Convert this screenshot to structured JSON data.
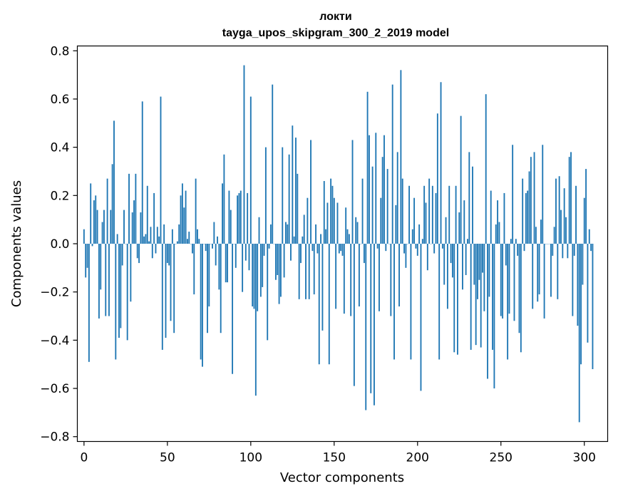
{
  "chart_data": {
    "type": "bar",
    "title": "локти",
    "subtitle": "tayga_upos_skipgram_300_2_2019 model",
    "xlabel": "Vector components",
    "ylabel": "Components values",
    "xlim": [
      -4,
      314
    ],
    "ylim": [
      -0.82,
      0.82
    ],
    "x_ticks": [
      0,
      50,
      100,
      150,
      200,
      250,
      300
    ],
    "y_ticks": [
      -0.8,
      -0.6,
      -0.4,
      -0.2,
      0.0,
      0.2,
      0.4,
      0.6,
      0.8
    ],
    "y_tick_labels": [
      "−0.8",
      "−0.6",
      "−0.4",
      "−0.2",
      "0.0",
      "0.2",
      "0.4",
      "0.6",
      "0.8"
    ],
    "x_tick_labels": [
      "0",
      "50",
      "100",
      "150",
      "200",
      "250",
      "300"
    ],
    "bar_color": "#1f77b4",
    "grid": false,
    "values": [
      0.06,
      -0.14,
      -0.1,
      -0.49,
      0.25,
      -0.01,
      0.18,
      0.2,
      0.14,
      -0.31,
      -0.19,
      0.09,
      0.14,
      -0.3,
      0.27,
      -0.3,
      0.14,
      0.33,
      0.51,
      -0.48,
      0.04,
      -0.39,
      -0.35,
      -0.09,
      0.14,
      0.0,
      -0.4,
      0.29,
      -0.24,
      0.13,
      0.18,
      0.29,
      -0.06,
      -0.08,
      0.13,
      0.59,
      0.03,
      0.04,
      0.24,
      0.01,
      0.07,
      -0.06,
      0.21,
      -0.04,
      0.07,
      0.03,
      0.61,
      -0.44,
      0.08,
      -0.39,
      -0.08,
      -0.09,
      -0.32,
      0.06,
      -0.37,
      0.0,
      0.01,
      0.08,
      0.2,
      0.25,
      0.15,
      0.22,
      0.02,
      0.05,
      0.0,
      -0.04,
      -0.21,
      0.27,
      0.06,
      0.02,
      -0.48,
      -0.51,
      0.0,
      -0.03,
      -0.37,
      -0.26,
      0.0,
      -0.02,
      0.09,
      -0.09,
      0.03,
      -0.19,
      -0.37,
      0.25,
      0.37,
      -0.16,
      -0.16,
      0.22,
      0.14,
      -0.54,
      0.0,
      -0.1,
      0.2,
      0.21,
      0.22,
      -0.2,
      0.74,
      -0.07,
      0.21,
      -0.11,
      0.61,
      -0.26,
      -0.27,
      -0.63,
      -0.28,
      0.11,
      -0.22,
      -0.18,
      -0.05,
      0.4,
      -0.4,
      -0.02,
      0.08,
      0.66,
      0.0,
      -0.15,
      -0.13,
      -0.25,
      -0.22,
      0.4,
      -0.14,
      0.09,
      0.08,
      0.37,
      -0.07,
      0.49,
      0.03,
      0.44,
      0.29,
      -0.23,
      -0.08,
      0.03,
      0.12,
      -0.23,
      0.19,
      -0.23,
      0.43,
      -0.03,
      -0.21,
      0.08,
      -0.04,
      -0.5,
      0.04,
      -0.36,
      0.26,
      0.06,
      0.17,
      -0.5,
      0.27,
      0.24,
      0.19,
      -0.27,
      0.17,
      -0.04,
      -0.03,
      -0.05,
      -0.29,
      0.15,
      0.06,
      0.04,
      -0.3,
      0.43,
      -0.59,
      0.11,
      0.09,
      -0.26,
      0.0,
      0.27,
      -0.08,
      -0.69,
      0.63,
      0.45,
      -0.62,
      0.32,
      -0.67,
      0.46,
      -0.02,
      -0.28,
      0.19,
      0.36,
      0.45,
      -0.03,
      0.31,
      0.0,
      -0.3,
      0.66,
      -0.48,
      0.16,
      0.38,
      -0.26,
      0.72,
      0.27,
      -0.04,
      -0.1,
      0.0,
      0.24,
      -0.48,
      0.06,
      0.19,
      -0.02,
      -0.05,
      0.08,
      -0.61,
      0.02,
      0.24,
      0.17,
      -0.11,
      0.27,
      0.0,
      0.24,
      -0.04,
      0.21,
      0.54,
      -0.48,
      0.67,
      -0.02,
      -0.17,
      0.11,
      -0.27,
      0.24,
      -0.08,
      -0.14,
      -0.45,
      0.24,
      -0.46,
      0.13,
      0.53,
      -0.19,
      0.18,
      -0.13,
      0.02,
      0.38,
      -0.44,
      0.32,
      -0.17,
      -0.42,
      -0.23,
      -0.15,
      -0.43,
      -0.12,
      -0.28,
      0.62,
      -0.56,
      -0.22,
      0.22,
      -0.44,
      -0.6,
      0.08,
      0.18,
      0.09,
      -0.3,
      -0.31,
      0.21,
      -0.09,
      -0.48,
      -0.29,
      0.02,
      0.41,
      -0.32,
      0.02,
      -0.05,
      -0.37,
      -0.45,
      0.27,
      -0.03,
      0.21,
      0.22,
      0.3,
      0.36,
      -0.27,
      0.38,
      0.07,
      -0.24,
      -0.21,
      0.1,
      0.41,
      -0.31,
      0.0,
      0.0,
      0.0,
      -0.22,
      -0.05,
      0.07,
      0.27,
      -0.23,
      0.28,
      0.14,
      -0.06,
      0.23,
      0.11,
      -0.06,
      0.36,
      0.38,
      -0.3,
      -0.05,
      0.24,
      -0.34,
      -0.74,
      -0.5,
      -0.17,
      0.19,
      0.31,
      -0.41,
      0.06,
      -0.03,
      -0.52
    ]
  }
}
